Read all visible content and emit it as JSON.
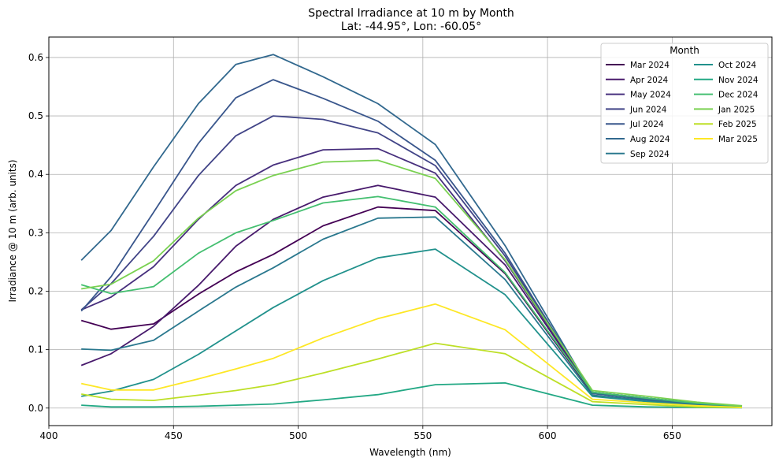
{
  "chart_data": {
    "type": "line",
    "title": "Spectral Irradiance at 10 m by Month",
    "subtitle": "Lat: -44.95°, Lon: -60.05°",
    "xlabel": "Wavelength (nm)",
    "ylabel": "Irradiance @ 10 m (arb. units)",
    "xlim": [
      400,
      690
    ],
    "ylim": [
      -0.03,
      0.635
    ],
    "xticks": [
      400,
      450,
      500,
      550,
      600,
      650
    ],
    "yticks": [
      0.0,
      0.1,
      0.2,
      0.3,
      0.4,
      0.5,
      0.6
    ],
    "grid": true,
    "legend": {
      "title": "Month",
      "location": "upper right",
      "columns": 2
    },
    "x": [
      413,
      425,
      442,
      460,
      475,
      490,
      510,
      532,
      555,
      583,
      618,
      640,
      660,
      678
    ],
    "series": [
      {
        "name": "Mar 2024",
        "color": "#440154",
        "values": [
          0.15,
          0.135,
          0.144,
          0.195,
          0.233,
          0.263,
          0.312,
          0.344,
          0.338,
          0.23,
          0.025,
          0.015,
          0.007,
          0.003
        ]
      },
      {
        "name": "Apr 2024",
        "color": "#481a6c",
        "values": [
          0.073,
          0.093,
          0.14,
          0.21,
          0.277,
          0.323,
          0.361,
          0.381,
          0.361,
          0.245,
          0.026,
          0.016,
          0.008,
          0.003
        ]
      },
      {
        "name": "May 2024",
        "color": "#472f7d",
        "values": [
          0.168,
          0.19,
          0.242,
          0.323,
          0.381,
          0.416,
          0.442,
          0.444,
          0.402,
          0.252,
          0.027,
          0.017,
          0.008,
          0.003
        ]
      },
      {
        "name": "Jun 2024",
        "color": "#414487",
        "values": [
          0.168,
          0.213,
          0.294,
          0.398,
          0.466,
          0.5,
          0.494,
          0.471,
          0.415,
          0.26,
          0.027,
          0.017,
          0.008,
          0.003
        ]
      },
      {
        "name": "Jul 2024",
        "color": "#39568c",
        "values": [
          0.166,
          0.225,
          0.335,
          0.453,
          0.531,
          0.562,
          0.53,
          0.491,
          0.424,
          0.265,
          0.026,
          0.016,
          0.007,
          0.003
        ]
      },
      {
        "name": "Aug 2024",
        "color": "#31688e",
        "values": [
          0.253,
          0.304,
          0.413,
          0.521,
          0.588,
          0.605,
          0.567,
          0.521,
          0.451,
          0.278,
          0.025,
          0.015,
          0.006,
          0.002
        ]
      },
      {
        "name": "Sep 2024",
        "color": "#2a788e",
        "values": [
          0.101,
          0.099,
          0.116,
          0.166,
          0.207,
          0.24,
          0.289,
          0.325,
          0.327,
          0.22,
          0.022,
          0.013,
          0.005,
          0.002
        ]
      },
      {
        "name": "Oct 2024",
        "color": "#21918c",
        "values": [
          0.02,
          0.029,
          0.049,
          0.092,
          0.132,
          0.172,
          0.218,
          0.257,
          0.272,
          0.194,
          0.02,
          0.011,
          0.004,
          0.001
        ]
      },
      {
        "name": "Nov 2024",
        "color": "#22a884",
        "values": [
          0.005,
          0.002,
          0.002,
          0.003,
          0.005,
          0.007,
          0.014,
          0.023,
          0.04,
          0.043,
          0.005,
          0.002,
          0.001,
          0.0005
        ]
      },
      {
        "name": "Dec 2024",
        "color": "#44bf70",
        "values": [
          0.211,
          0.196,
          0.208,
          0.265,
          0.3,
          0.321,
          0.351,
          0.362,
          0.344,
          0.232,
          0.027,
          0.017,
          0.008,
          0.003
        ]
      },
      {
        "name": "Jan 2025",
        "color": "#7ad151",
        "values": [
          0.204,
          0.212,
          0.252,
          0.325,
          0.372,
          0.398,
          0.421,
          0.424,
          0.393,
          0.254,
          0.03,
          0.02,
          0.01,
          0.004
        ]
      },
      {
        "name": "Feb 2025",
        "color": "#bddf26",
        "values": [
          0.024,
          0.015,
          0.013,
          0.022,
          0.03,
          0.04,
          0.06,
          0.084,
          0.111,
          0.093,
          0.011,
          0.006,
          0.002,
          0.001
        ]
      },
      {
        "name": "Mar 2025",
        "color": "#fde725",
        "values": [
          0.042,
          0.031,
          0.031,
          0.05,
          0.067,
          0.085,
          0.12,
          0.153,
          0.178,
          0.134,
          0.015,
          0.009,
          0.004,
          0.001
        ]
      }
    ]
  }
}
